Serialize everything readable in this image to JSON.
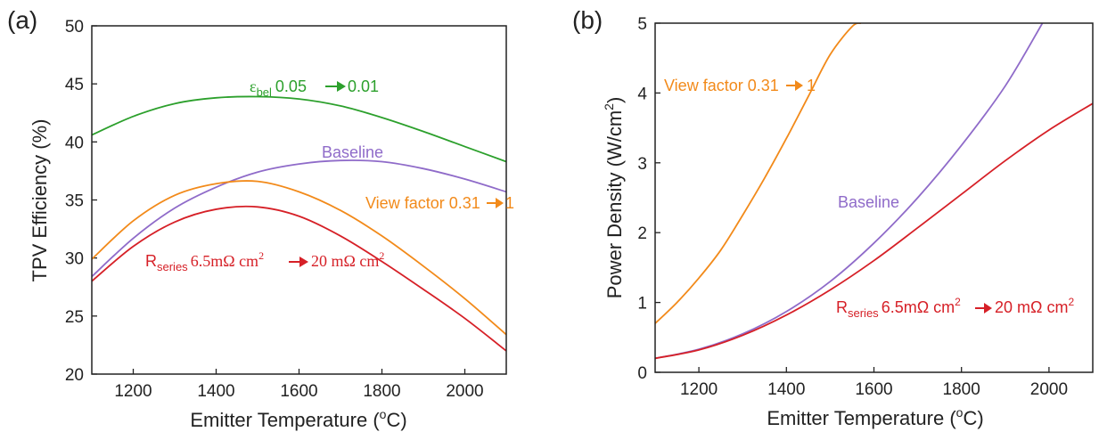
{
  "colors": {
    "green": "#2ca02c",
    "purple": "#8f6bc9",
    "orange": "#f28a1a",
    "red": "#d62027"
  },
  "chart_data": [
    {
      "id": "a",
      "type": "line",
      "panel_label": "(a)",
      "xlabel": {
        "main": "Emitter Temperature (",
        "sup": "o",
        "end": "C)"
      },
      "ylabel": "TPV Efficiency (%)",
      "xlim": [
        1100,
        2100
      ],
      "ylim": [
        20,
        50
      ],
      "xticks": [
        "1200",
        "1400",
        "1600",
        "1800",
        "2000"
      ],
      "yticks": [
        "20",
        "25",
        "30",
        "35",
        "40",
        "45",
        "50"
      ],
      "x": [
        1100,
        1200,
        1300,
        1400,
        1500,
        1600,
        1700,
        1800,
        1900,
        2000,
        2100
      ],
      "series": [
        {
          "key": "green",
          "values": [
            40.6,
            42.2,
            43.3,
            43.8,
            43.9,
            43.7,
            43.1,
            42.1,
            40.9,
            39.6,
            38.3
          ]
        },
        {
          "key": "purple",
          "values": [
            28.4,
            31.7,
            34.3,
            36.1,
            37.4,
            38.1,
            38.4,
            38.3,
            37.7,
            36.8,
            35.7
          ]
        },
        {
          "key": "orange",
          "values": [
            29.9,
            33.2,
            35.4,
            36.4,
            36.6,
            35.7,
            34.1,
            31.9,
            29.3,
            26.5,
            23.4
          ]
        },
        {
          "key": "red",
          "values": [
            28.0,
            31.0,
            33.1,
            34.2,
            34.4,
            33.6,
            31.9,
            29.7,
            27.3,
            24.8,
            22.0
          ]
        }
      ],
      "annotations": {
        "green": {
          "pre": "ε",
          "sub": "bel",
          "text": "0.05",
          "arrow_to": "0.01"
        },
        "purple": {
          "text": "Baseline"
        },
        "orange": {
          "text": "View factor 0.31",
          "arrow_to": "1"
        },
        "red": {
          "pre": "R",
          "sub": "series",
          "text": "6.5mΩ cm",
          "sup": "2",
          "arrow_to": "20 mΩ cm",
          "sup2": "2"
        }
      }
    },
    {
      "id": "b",
      "type": "line",
      "panel_label": "(b)",
      "xlabel": {
        "main": "Emitter Temperature (",
        "sup": "o",
        "end": "C)"
      },
      "ylabel": {
        "main": "Power Density (W/cm",
        "sup": "2",
        "end": ")"
      },
      "xlim": [
        1100,
        2100
      ],
      "ylim": [
        0,
        5
      ],
      "xticks": [
        "1200",
        "1400",
        "1600",
        "1800",
        "2000"
      ],
      "yticks": [
        "0",
        "1",
        "2",
        "3",
        "4",
        "5"
      ],
      "x": [
        1100,
        1200,
        1300,
        1400,
        1500,
        1600,
        1700,
        1800,
        1900,
        2000,
        2100
      ],
      "series": [
        {
          "key": "orange",
          "x": [
            1100,
            1150,
            1200,
            1250,
            1300,
            1350,
            1400,
            1450,
            1500,
            1550,
            1570
          ],
          "values": [
            0.7,
            1.0,
            1.35,
            1.75,
            2.25,
            2.78,
            3.35,
            3.95,
            4.55,
            4.95,
            5.0
          ]
        },
        {
          "key": "purple",
          "x": [
            1100,
            1200,
            1300,
            1400,
            1500,
            1600,
            1700,
            1800,
            1900,
            1985
          ],
          "values": [
            0.2,
            0.33,
            0.55,
            0.87,
            1.3,
            1.85,
            2.5,
            3.25,
            4.1,
            5.0
          ]
        },
        {
          "key": "red",
          "x": [
            1100,
            1200,
            1300,
            1400,
            1500,
            1600,
            1700,
            1800,
            1900,
            2000,
            2100
          ],
          "values": [
            0.2,
            0.32,
            0.53,
            0.82,
            1.18,
            1.6,
            2.07,
            2.55,
            3.03,
            3.47,
            3.85
          ]
        }
      ],
      "annotations": {
        "orange": {
          "text": "View factor 0.31",
          "arrow_to": "1"
        },
        "purple": {
          "text": "Baseline"
        },
        "red": {
          "pre": "R",
          "sub": "series",
          "text": "6.5mΩ cm",
          "sup": "2",
          "arrow_to": "20 mΩ cm",
          "sup2": "2"
        }
      }
    }
  ]
}
